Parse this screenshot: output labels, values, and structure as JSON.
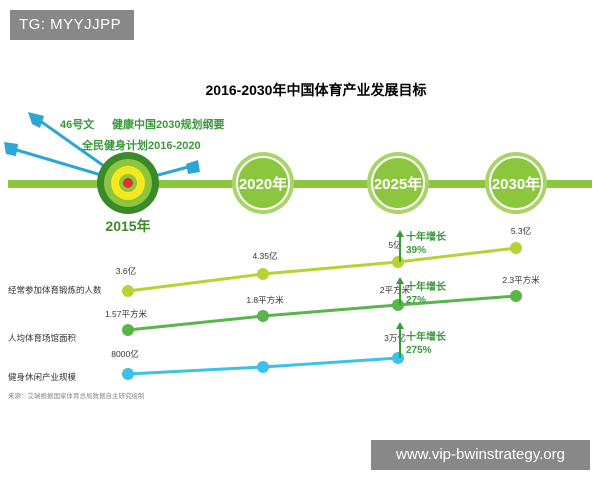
{
  "watermarks": {
    "top_left": "TG: MYYJJPP",
    "bottom_right": "www.vip-bwinstrategy.org"
  },
  "colors": {
    "timeline": "#8cc63f",
    "milestone_ring": "#8cc63f",
    "milestone_dark": "#3a8a2a",
    "target_yellow": "#f2ea1c",
    "target_red": "#e03325",
    "arrow": "#2aa7d6",
    "series_1": "#b3d433",
    "series_2": "#57b54a",
    "series_3": "#3ac3e6",
    "growth_arrow": "#3a9a3a",
    "growth_text": "#3a9a3a",
    "title": "#333333",
    "label_text": "#333333",
    "source_text": "#888888"
  },
  "chart_data": {
    "type": "line",
    "title": "2016-2030年中国体育产业发展目标",
    "milestones": [
      "2015年",
      "2020年",
      "2025年",
      "2030年"
    ],
    "policies": [
      "46号文",
      "健康中国2030规划纲要",
      "全民健身计划2016-2020"
    ],
    "series": [
      {
        "name": "经常参加体育锻炼的人数",
        "x": [
          "2015",
          "2020",
          "2025",
          "2030"
        ],
        "values": [
          3.6,
          4.35,
          5,
          5.3
        ],
        "value_labels": [
          "3.6亿",
          "4.35亿",
          "5亿",
          "5.3亿"
        ],
        "growth": {
          "label": "十年增长",
          "value": "39%"
        }
      },
      {
        "name": "人均体育场馆面积",
        "x": [
          "2015",
          "2020",
          "2025",
          "2030"
        ],
        "values": [
          1.57,
          1.8,
          2,
          2.3
        ],
        "value_labels": [
          "1.57平方米",
          "1.8平方米",
          "2平方米",
          "2.3平方米"
        ],
        "growth": {
          "label": "十年增长",
          "value": "27%"
        }
      },
      {
        "name": "健身休闲产业规模",
        "x": [
          "2015",
          "2020",
          "2025"
        ],
        "values": [
          8000,
          null,
          30000
        ],
        "value_labels": [
          "8000亿",
          "",
          "3万亿"
        ],
        "growth": {
          "label": "十年增长",
          "value": "275%"
        }
      }
    ],
    "source": "来源：艾瑞根据国家体育总局数据自主研究绘制",
    "legend": "none",
    "grid": false
  }
}
